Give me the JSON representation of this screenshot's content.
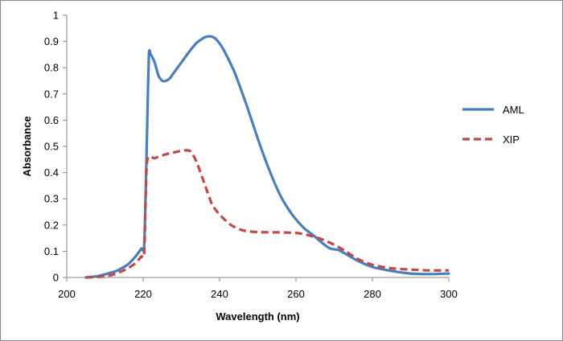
{
  "chart_data": {
    "type": "line",
    "title": "",
    "xlabel": "Wavelength (nm)",
    "ylabel": "Absorbance",
    "xlim": [
      200,
      300
    ],
    "ylim": [
      0,
      1
    ],
    "xticks": [
      200,
      220,
      240,
      260,
      280,
      300
    ],
    "yticks": [
      0,
      0.1,
      0.2,
      0.3,
      0.4,
      0.5,
      0.6,
      0.7,
      0.8,
      0.9,
      1
    ],
    "ytick_labels": [
      "0",
      "0.1",
      "0.2",
      "0.3",
      "0.4",
      "0.5",
      "0.6",
      "0.7",
      "0.8",
      "0.9",
      "1"
    ],
    "grid": false,
    "legend_position": "right",
    "series": [
      {
        "name": "AML",
        "color": "#4a7ebb",
        "style": "solid",
        "x": [
          205,
          208,
          210,
          213,
          216,
          218,
          219.5,
          220.3,
          221,
          221.5,
          222,
          223,
          224,
          225,
          226,
          227,
          228,
          230,
          232,
          234,
          236,
          237.5,
          239,
          241,
          244,
          247,
          250,
          253,
          256,
          259,
          262,
          265,
          267,
          269,
          271,
          273,
          276,
          280,
          285,
          290,
          295,
          300
        ],
        "y": [
          0,
          0.005,
          0.012,
          0.025,
          0.05,
          0.08,
          0.11,
          0.13,
          0.55,
          0.85,
          0.85,
          0.82,
          0.77,
          0.75,
          0.75,
          0.76,
          0.78,
          0.82,
          0.86,
          0.895,
          0.915,
          0.92,
          0.91,
          0.87,
          0.78,
          0.66,
          0.53,
          0.41,
          0.31,
          0.24,
          0.19,
          0.155,
          0.13,
          0.11,
          0.105,
          0.09,
          0.065,
          0.04,
          0.025,
          0.015,
          0.013,
          0.015
        ]
      },
      {
        "name": "XIP",
        "color": "#be4b48",
        "style": "dashed",
        "x": [
          205,
          210,
          213,
          216,
          218,
          219.5,
          220.3,
          221,
          223,
          226,
          229,
          231,
          232.5,
          234,
          236,
          238,
          240,
          243,
          246,
          250,
          255,
          260,
          263,
          266,
          270,
          273,
          276,
          280,
          285,
          290,
          295,
          300
        ],
        "y": [
          0,
          0.004,
          0.015,
          0.035,
          0.055,
          0.08,
          0.1,
          0.44,
          0.455,
          0.47,
          0.48,
          0.485,
          0.48,
          0.44,
          0.36,
          0.28,
          0.24,
          0.2,
          0.18,
          0.173,
          0.172,
          0.17,
          0.162,
          0.15,
          0.125,
          0.1,
          0.072,
          0.048,
          0.035,
          0.03,
          0.027,
          0.027
        ]
      }
    ]
  }
}
